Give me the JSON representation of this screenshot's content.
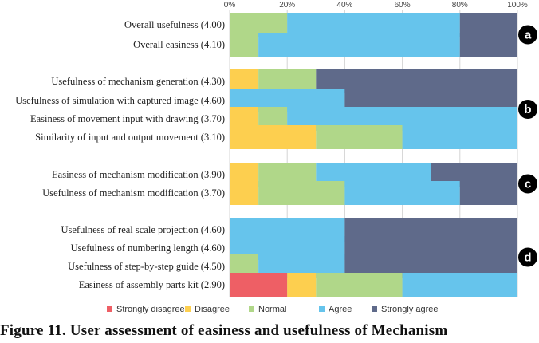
{
  "caption": "Figure 11. User assessment of easiness and usefulness of Mechanism",
  "chart_data": {
    "type": "bar",
    "orientation": "horizontal",
    "stacked": "percent",
    "xlim": [
      0,
      100
    ],
    "xticks": [
      "0%",
      "20%",
      "40%",
      "60%",
      "80%",
      "100%"
    ],
    "grid": "vertical",
    "legend_position": "bottom",
    "categories": [
      "Overall usefulness (4.00)",
      "Overall easiness (4.10)",
      "Usefulness of mechanism generation (4.30)",
      "Usefulness of simulation with captured image (4.60)",
      "Easiness of movement input with drawing (3.70)",
      "Similarity of input and output movement (3.10)",
      "Easiness of mechanism modification (3.90)",
      "Usefulness of mechanism modification (3.70)",
      "Usefulness of real scale projection (4.60)",
      "Usefulness of numbering length (4.60)",
      "Usefulness of step-by-step guide (4.50)",
      "Easiness of assembly parts kit (2.90)"
    ],
    "series": [
      {
        "name": "Strongly disagree",
        "color": "#ee5f65",
        "values": [
          0,
          0,
          0,
          0,
          0,
          0,
          0,
          0,
          0,
          0,
          0,
          20
        ]
      },
      {
        "name": "Disagree",
        "color": "#fdcf4f",
        "values": [
          0,
          0,
          10,
          0,
          10,
          30,
          10,
          10,
          0,
          0,
          0,
          10
        ]
      },
      {
        "name": "Normal",
        "color": "#b0d789",
        "values": [
          20,
          10,
          20,
          0,
          10,
          30,
          20,
          30,
          0,
          0,
          10,
          30
        ]
      },
      {
        "name": "Agree",
        "color": "#66c4ec",
        "values": [
          60,
          70,
          0,
          40,
          80,
          40,
          40,
          40,
          40,
          40,
          30,
          40
        ]
      },
      {
        "name": "Strongly agree",
        "color": "#5f6a8a",
        "values": [
          20,
          20,
          70,
          60,
          0,
          0,
          30,
          20,
          60,
          60,
          60,
          0
        ]
      }
    ],
    "groups": [
      {
        "label": "a",
        "categories": [
          0,
          1
        ]
      },
      {
        "label": "b",
        "categories": [
          2,
          3,
          4,
          5
        ]
      },
      {
        "label": "c",
        "categories": [
          6,
          7
        ]
      },
      {
        "label": "d",
        "categories": [
          8,
          9,
          10,
          11
        ]
      }
    ]
  }
}
